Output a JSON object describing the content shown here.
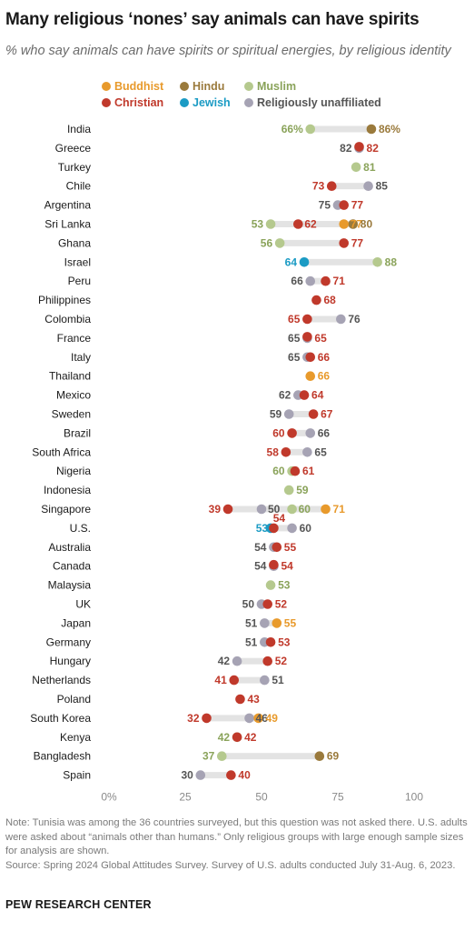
{
  "title": "Many religious ‘nones’ say animals can have spirits",
  "subtitle": "% who say animals can have spirits or spiritual energies, by religious identity",
  "legend": [
    {
      "key": "buddhist",
      "label": "Buddhist",
      "color": "#e89a2c"
    },
    {
      "key": "hindu",
      "label": "Hindu",
      "color": "#9a7a3c"
    },
    {
      "key": "muslim",
      "label": "Muslim",
      "color": "#b5c98e"
    },
    {
      "key": "christian",
      "label": "Christian",
      "color": "#c0392b"
    },
    {
      "key": "jewish",
      "label": "Jewish",
      "color": "#1b9bc4"
    },
    {
      "key": "unaffiliated",
      "label": "Religiously unaffiliated",
      "color": "#a6a3b4"
    }
  ],
  "chart_data": {
    "type": "scatter",
    "xlim": [
      0,
      100
    ],
    "x_ticks": [
      "0%",
      "25",
      "50",
      "75",
      "100"
    ],
    "rows": [
      {
        "country": "India",
        "values": {
          "muslim": 66,
          "hindu": 86
        },
        "labels": {
          "muslim": "66%",
          "hindu": "86%"
        }
      },
      {
        "country": "Greece",
        "values": {
          "unaffiliated": 82,
          "christian": 82
        }
      },
      {
        "country": "Turkey",
        "values": {
          "muslim": 81
        }
      },
      {
        "country": "Chile",
        "values": {
          "christian": 73,
          "unaffiliated": 85
        }
      },
      {
        "country": "Argentina",
        "values": {
          "unaffiliated": 75,
          "christian": 77
        }
      },
      {
        "country": "Sri Lanka",
        "values": {
          "muslim": 53,
          "christian": 62,
          "buddhist": 77,
          "hindu": 80
        }
      },
      {
        "country": "Ghana",
        "values": {
          "muslim": 56,
          "christian": 77
        }
      },
      {
        "country": "Israel",
        "values": {
          "jewish": 64,
          "muslim": 88
        }
      },
      {
        "country": "Peru",
        "values": {
          "unaffiliated": 66,
          "christian": 71
        }
      },
      {
        "country": "Philippines",
        "values": {
          "christian": 68
        }
      },
      {
        "country": "Colombia",
        "values": {
          "christian": 65,
          "unaffiliated": 76
        }
      },
      {
        "country": "France",
        "values": {
          "unaffiliated": 65,
          "christian": 65
        }
      },
      {
        "country": "Italy",
        "values": {
          "unaffiliated": 65,
          "christian": 66
        }
      },
      {
        "country": "Thailand",
        "values": {
          "buddhist": 66
        }
      },
      {
        "country": "Mexico",
        "values": {
          "unaffiliated": 62,
          "christian": 64
        }
      },
      {
        "country": "Sweden",
        "values": {
          "unaffiliated": 59,
          "christian": 67
        }
      },
      {
        "country": "Brazil",
        "values": {
          "christian": 60,
          "unaffiliated": 66
        }
      },
      {
        "country": "South Africa",
        "values": {
          "christian": 58,
          "unaffiliated": 65
        }
      },
      {
        "country": "Nigeria",
        "values": {
          "muslim": 60,
          "christian": 61
        }
      },
      {
        "country": "Indonesia",
        "values": {
          "muslim": 59
        }
      },
      {
        "country": "Singapore",
        "values": {
          "christian": 39,
          "unaffiliated": 50,
          "muslim": 60,
          "buddhist": 71
        }
      },
      {
        "country": "U.S.",
        "values": {
          "jewish": 53,
          "christian": 54,
          "unaffiliated": 60
        }
      },
      {
        "country": "Australia",
        "values": {
          "unaffiliated": 54,
          "christian": 55
        }
      },
      {
        "country": "Canada",
        "values": {
          "unaffiliated": 54,
          "christian": 54
        }
      },
      {
        "country": "Malaysia",
        "values": {
          "muslim": 53
        }
      },
      {
        "country": "UK",
        "values": {
          "unaffiliated": 50,
          "christian": 52
        }
      },
      {
        "country": "Japan",
        "values": {
          "unaffiliated": 51,
          "buddhist": 55
        }
      },
      {
        "country": "Germany",
        "values": {
          "unaffiliated": 51,
          "christian": 53
        }
      },
      {
        "country": "Hungary",
        "values": {
          "unaffiliated": 42,
          "christian": 52
        }
      },
      {
        "country": "Netherlands",
        "values": {
          "christian": 41,
          "unaffiliated": 51
        }
      },
      {
        "country": "Poland",
        "values": {
          "christian": 43
        }
      },
      {
        "country": "South Korea",
        "values": {
          "christian": 32,
          "unaffiliated": 46,
          "buddhist": 49
        }
      },
      {
        "country": "Kenya",
        "values": {
          "muslim": 42,
          "christian": 42
        }
      },
      {
        "country": "Bangladesh",
        "values": {
          "muslim": 37,
          "hindu": 69
        }
      },
      {
        "country": "Spain",
        "values": {
          "unaffiliated": 30,
          "christian": 40
        }
      }
    ]
  },
  "notes": [
    "Note: Tunisia was among the 36 countries surveyed, but this question was not asked there. U.S. adults were asked about “animals other than humans.” Only religious groups with large enough sample sizes for analysis are shown.",
    "Source: Spring 2024 Global Attitudes Survey. Survey of U.S. adults conducted July 31-Aug. 6, 2023."
  ],
  "org": "PEW RESEARCH CENTER"
}
